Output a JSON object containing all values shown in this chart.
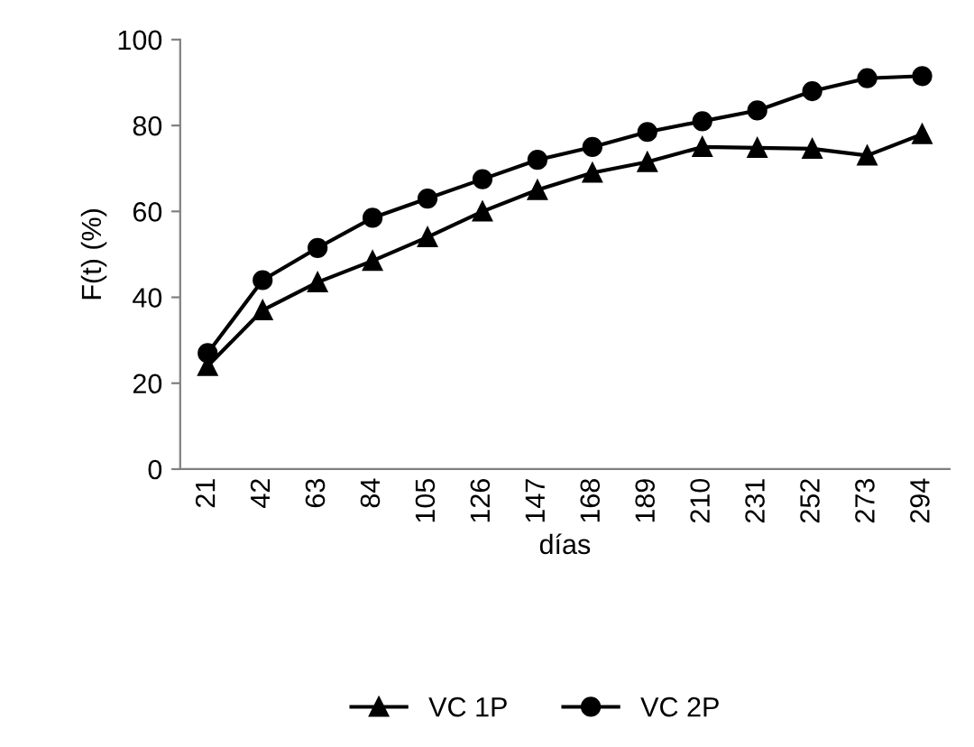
{
  "chart_data": {
    "type": "line",
    "xlabel": "días",
    "ylabel": "F(t) (%)",
    "categories": [
      "21",
      "42",
      "63",
      "84",
      "105",
      "126",
      "147",
      "168",
      "189",
      "210",
      "231",
      "252",
      "273",
      "294"
    ],
    "series": [
      {
        "name": "VC 1P",
        "color": "#000000",
        "marker": "triangle",
        "values": [
          24,
          37,
          43.5,
          48.5,
          54,
          60,
          65,
          69,
          71.5,
          75,
          74.8,
          74.6,
          73,
          78
        ]
      },
      {
        "name": "VC 2P",
        "color": "#000000",
        "marker": "circle",
        "values": [
          27,
          44,
          51.5,
          58.5,
          63,
          67.5,
          72,
          75,
          78.5,
          81,
          83.5,
          88,
          91,
          91.5
        ]
      }
    ],
    "ylim": [
      0,
      100
    ],
    "yticks": [
      0,
      20,
      40,
      60,
      80,
      100
    ],
    "grid": false,
    "legend": "bottom",
    "line_style": "solid"
  }
}
